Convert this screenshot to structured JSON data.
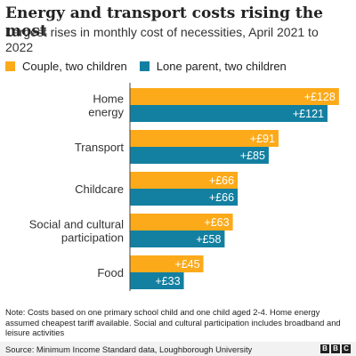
{
  "title": "Energy and transport costs rising the most",
  "subtitle": "Largest rises in monthly cost of necessities, April 2021 to 2022",
  "colors": {
    "couple": "#fcaa1a",
    "lone": "#1380a1"
  },
  "chart_data": {
    "type": "bar",
    "orientation": "horizontal",
    "categories": [
      "Home energy",
      "Transport",
      "Childcare",
      "Social and cultural participation",
      "Food"
    ],
    "category_lines": [
      [
        "Home",
        "energy"
      ],
      [
        "Transport"
      ],
      [
        "Childcare"
      ],
      [
        "Social and cultural",
        "participation"
      ],
      [
        "Food"
      ]
    ],
    "series": [
      {
        "name": "Couple, two children",
        "values": [
          128,
          91,
          66,
          63,
          45
        ],
        "labels": [
          "+£128",
          "+£91",
          "+£66",
          "+£63",
          "+£45"
        ]
      },
      {
        "name": "Lone parent, two children",
        "values": [
          121,
          85,
          66,
          58,
          33
        ],
        "labels": [
          "+£121",
          "+£85",
          "+£66",
          "+£58",
          "+£33"
        ]
      }
    ],
    "xlim": [
      0,
      133
    ],
    "grid": false,
    "legend": "top-left"
  },
  "note": "Note: Costs based on one primary school child and one child aged 2-4. Home energy assumed cheapest tariff available. Social and cultural participation includes broadband and leisure activities",
  "source": "Source: Minimum Income Standard data, Loughborough University",
  "logo": [
    "B",
    "B",
    "C"
  ]
}
